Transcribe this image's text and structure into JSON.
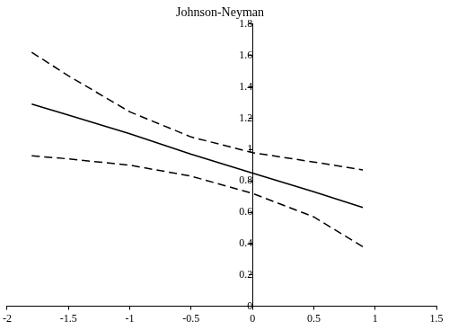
{
  "chart_data": {
    "type": "line",
    "title": "Johnson-Neyman",
    "x": [
      -1.8,
      -1.5,
      -1,
      -0.5,
      0,
      0.5,
      0.9
    ],
    "series": [
      {
        "color": "#000000",
        "line_style": "solid",
        "values": [
          1.29,
          1.22,
          1.1,
          0.97,
          0.85,
          0.73,
          0.63
        ]
      },
      {
        "color": "#000000",
        "line_style": "dashed",
        "values": [
          1.62,
          1.47,
          1.24,
          1.08,
          0.98,
          0.92,
          0.87
        ]
      },
      {
        "color": "#000000",
        "line_style": "dashed",
        "values": [
          0.96,
          0.94,
          0.9,
          0.83,
          0.72,
          0.57,
          0.38
        ]
      }
    ],
    "xlim": [
      -2,
      1.5
    ],
    "xticks": [
      -2,
      -1.5,
      -1,
      -0.5,
      0,
      0.5,
      1,
      1.5
    ],
    "ylim": [
      0,
      1.8
    ],
    "yticks": [
      0,
      0.2,
      0.4,
      0.6,
      0.8,
      1,
      1.2,
      1.4,
      1.6,
      1.8
    ],
    "grid": false
  }
}
